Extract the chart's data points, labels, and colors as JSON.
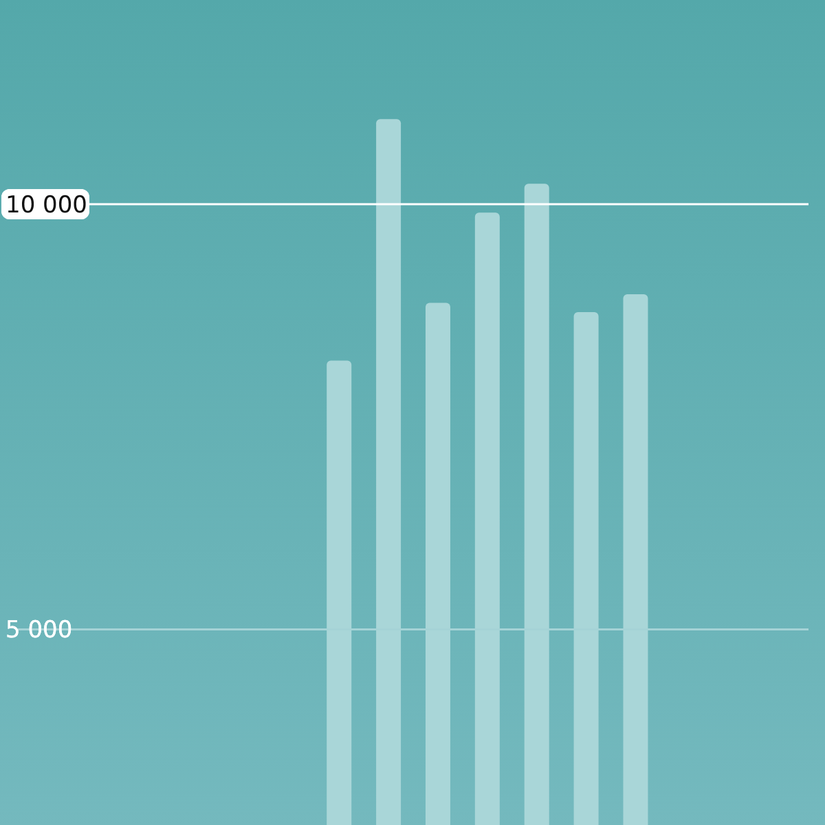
{
  "chart_data": {
    "type": "bar",
    "categories": [
      null,
      null,
      null,
      null,
      null,
      null,
      null,
      null,
      null,
      null,
      null,
      null,
      null,
      null,
      null,
      null
    ],
    "values": [
      null,
      null,
      null,
      null,
      null,
      null,
      8160,
      11000,
      8840,
      9900,
      10240,
      8730,
      8940,
      null,
      null,
      null
    ],
    "color": "#a9d6d8",
    "ylim": [
      2700,
      12400
    ],
    "yticks": [
      {
        "value": 5000,
        "label": "5 000"
      },
      {
        "value": 10000,
        "label": "10 000"
      }
    ],
    "ref_lines": [
      {
        "axis": "y",
        "value": 5000,
        "color": "#a5d3d6"
      },
      {
        "axis": "y",
        "value": 10000,
        "color": "#ffffff"
      }
    ]
  }
}
